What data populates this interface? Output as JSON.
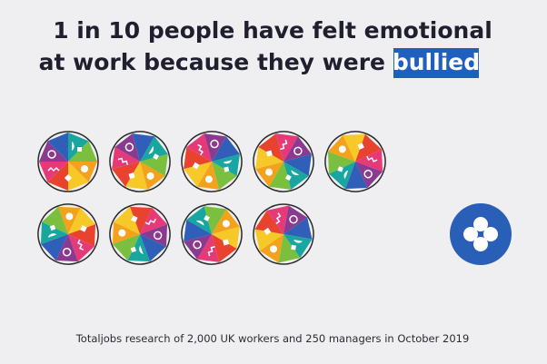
{
  "title": {
    "line1": "1 in 10 people have felt emotional",
    "line2": "at work because they were",
    "highlight": "bullied"
  },
  "footnote": "Totaljobs research of 2,000 UK workers and 250 managers in October 2019"
}
